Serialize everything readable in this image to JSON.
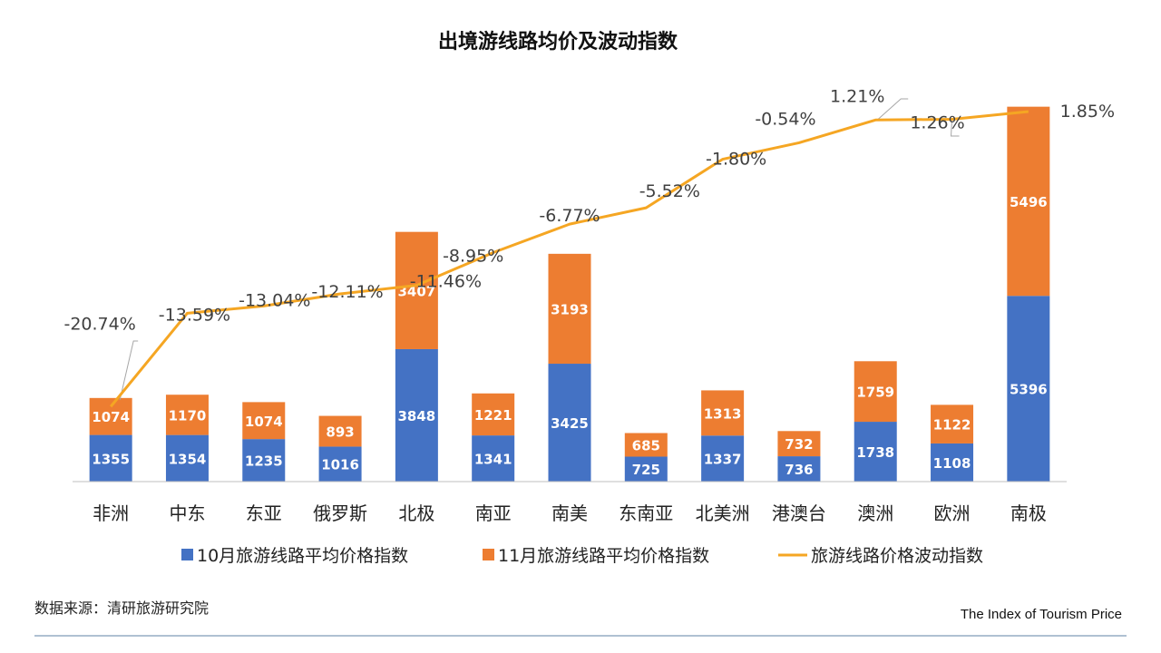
{
  "page": {
    "source": "数据来源：清研旅游研究院",
    "brand": "The Index of Tourism Price"
  },
  "chart_data": {
    "type": "bar",
    "stacked": true,
    "title": "出境游线路均价及波动指数",
    "categories": [
      "非洲",
      "中东",
      "东亚",
      "俄罗斯",
      "北极",
      "南亚",
      "南美",
      "东南亚",
      "北美洲",
      "港澳台",
      "澳洲",
      "欧洲",
      "南极"
    ],
    "series": [
      {
        "name": "10月旅游线路平均价格指数",
        "type": "bar",
        "color": "#4472C4",
        "values": [
          1355,
          1354,
          1235,
          1016,
          3848,
          1341,
          3425,
          725,
          1337,
          736,
          1738,
          1108,
          5396
        ]
      },
      {
        "name": "11月旅游线路平均价格指数",
        "type": "bar",
        "color": "#ED7D31",
        "values": [
          1074,
          1170,
          1074,
          893,
          3407,
          1221,
          3193,
          685,
          1313,
          732,
          1759,
          1122,
          5496
        ]
      },
      {
        "name": "旅游线路价格波动指数",
        "type": "line",
        "color": "#F5A623",
        "values": [
          -20.74,
          -13.59,
          -13.04,
          -12.11,
          -11.46,
          -8.95,
          -6.77,
          -5.52,
          -1.8,
          -0.54,
          1.21,
          1.26,
          1.85
        ],
        "labels": [
          "-20.74%",
          "-13.59%",
          "-13.04%",
          "-12.11%",
          "-11.46%",
          "-8.95%",
          "-6.77%",
          "-5.52%",
          "-1.80%",
          "-0.54%",
          "1.21%",
          "1.26%",
          "1.85%"
        ]
      }
    ],
    "legend": "bottom",
    "grid": false
  }
}
